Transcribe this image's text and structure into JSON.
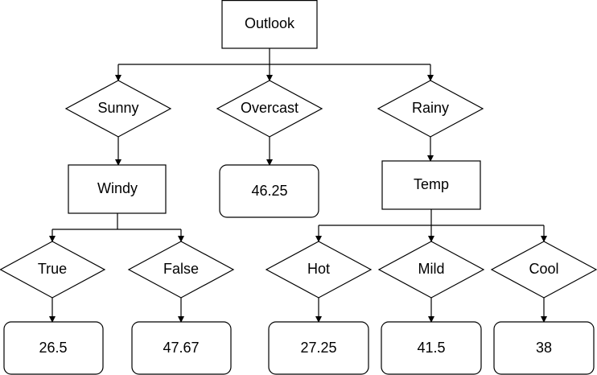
{
  "nodes": [
    {
      "label": "Outlook"
    },
    {
      "label": "Sunny"
    },
    {
      "label": "Overcast"
    },
    {
      "label": "Rainy"
    },
    {
      "label": "Windy"
    },
    {
      "label": "46.25"
    },
    {
      "label": "Temp"
    },
    {
      "label": "True"
    },
    {
      "label": "False"
    },
    {
      "label": "Hot"
    },
    {
      "label": "Mild"
    },
    {
      "label": "Cool"
    },
    {
      "label": "26.5"
    },
    {
      "label": "47.67"
    },
    {
      "label": "27.25"
    },
    {
      "label": "41.5"
    },
    {
      "label": "38"
    }
  ]
}
